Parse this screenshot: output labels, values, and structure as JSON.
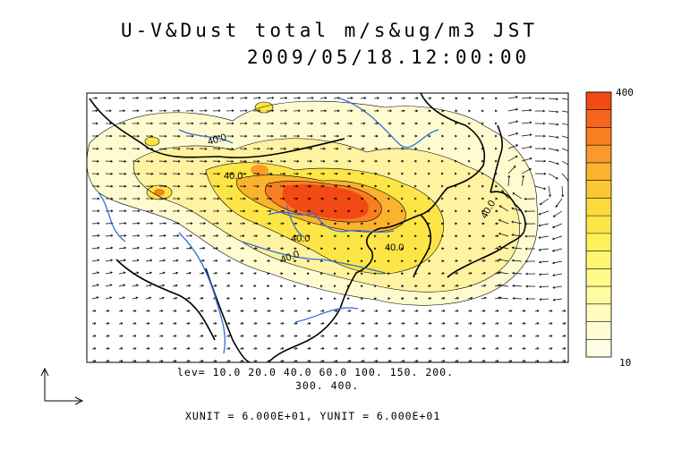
{
  "title": {
    "line1": "U-V&Dust total m/s&ug/m3 JST",
    "line2": "2009/05/18.12:00:00"
  },
  "contour_levels": {
    "line1": "lev= 10.0 20.0 40.0 60.0 100. 150. 200.",
    "line2": "300. 400."
  },
  "contour_labels": [
    "40.0",
    "40.0",
    "40.0",
    "40.0",
    "40.0",
    "40.0"
  ],
  "units_text": "XUNIT = 6.000E+01, YUNIT = 6.000E+01",
  "colorbar": {
    "max_label": "400",
    "min_label": "10",
    "colors": [
      "#f24a14",
      "#f5661c",
      "#f77f22",
      "#f99a2a",
      "#fbb22f",
      "#fcc735",
      "#fdd93c",
      "#fee547",
      "#fef05a",
      "#fef770",
      "#fffa8a",
      "#fffba3",
      "#fffcbc",
      "#fffdd2",
      "#fffee4"
    ]
  },
  "palette": {
    "rivers": "#2f6fd6",
    "coast": "#000000",
    "heavy": "#f24a14",
    "medium": "#fbb22f",
    "light": "#fff2a0",
    "faint": "#fffbd0"
  }
}
